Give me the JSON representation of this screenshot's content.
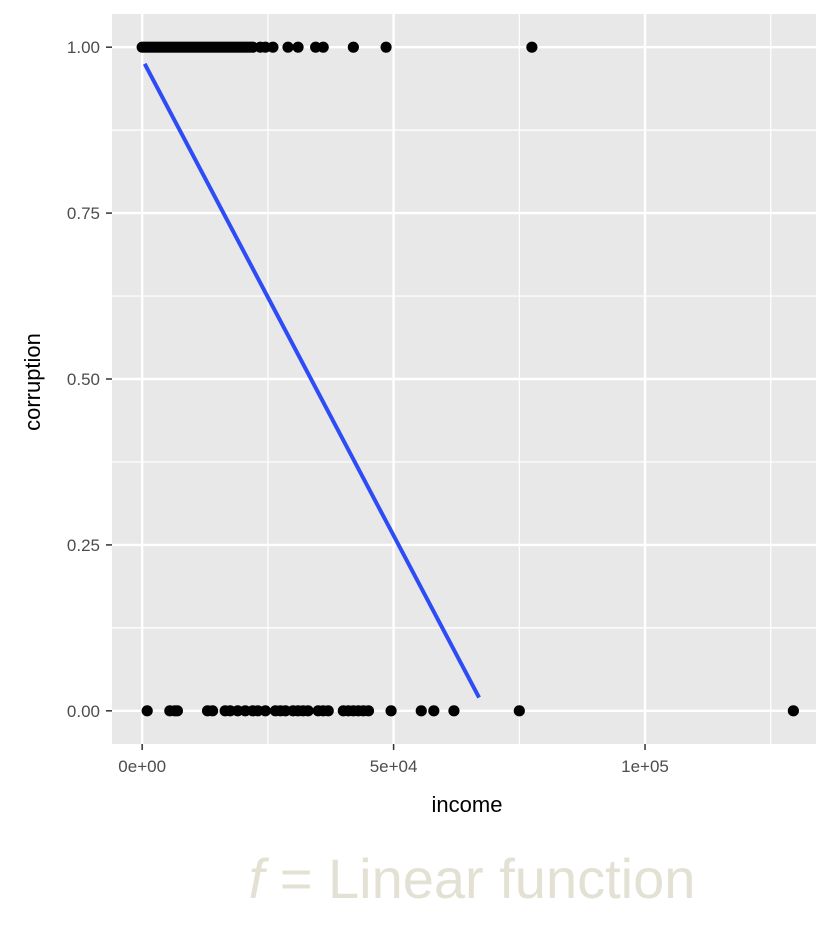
{
  "chart_data": {
    "type": "scatter",
    "xlabel": "income",
    "ylabel": "corruption",
    "xlim": [
      -6000,
      134000
    ],
    "ylim": [
      -0.05,
      1.05
    ],
    "x_ticks": [
      0,
      50000,
      100000
    ],
    "x_tick_labels": [
      "0e+00",
      "5e+04",
      "1e+05"
    ],
    "y_ticks": [
      0,
      0.25,
      0.5,
      0.75,
      1
    ],
    "y_tick_labels": [
      "0.00",
      "0.25",
      "0.50",
      "0.75",
      "1.00"
    ],
    "grid": true,
    "points": {
      "x": [
        0,
        500,
        1000,
        1500,
        2000,
        2500,
        3000,
        3500,
        4000,
        4500,
        5000,
        5500,
        6000,
        6500,
        7000,
        7500,
        8000,
        8500,
        9000,
        9500,
        10000,
        10500,
        11000,
        11500,
        12000,
        12500,
        13000,
        13500,
        14000,
        14500,
        15000,
        15500,
        16000,
        16500,
        17000,
        17500,
        18000,
        18500,
        19000,
        19500,
        20000,
        20500,
        21000,
        21500,
        22000,
        23500,
        24500,
        26000,
        29000,
        31000,
        34500,
        36000,
        42000,
        48500,
        77500,
        1000,
        5500,
        6500,
        7000,
        13000,
        14000,
        16500,
        17500,
        19000,
        20500,
        22000,
        23000,
        24500,
        26500,
        27500,
        28500,
        30000,
        31000,
        32000,
        33000,
        35000,
        36000,
        37000,
        40000,
        41000,
        42000,
        43000,
        44000,
        45000,
        49500,
        55500,
        58000,
        62000,
        75000,
        129500
      ],
      "y": [
        1,
        1,
        1,
        1,
        1,
        1,
        1,
        1,
        1,
        1,
        1,
        1,
        1,
        1,
        1,
        1,
        1,
        1,
        1,
        1,
        1,
        1,
        1,
        1,
        1,
        1,
        1,
        1,
        1,
        1,
        1,
        1,
        1,
        1,
        1,
        1,
        1,
        1,
        1,
        1,
        1,
        1,
        1,
        1,
        1,
        1,
        1,
        1,
        1,
        1,
        1,
        1,
        1,
        1,
        1,
        0,
        0,
        0,
        0,
        0,
        0,
        0,
        0,
        0,
        0,
        0,
        0,
        0,
        0,
        0,
        0,
        0,
        0,
        0,
        0,
        0,
        0,
        0,
        0,
        0,
        0,
        0,
        0,
        0,
        0,
        0,
        0,
        0,
        0,
        0
      ]
    },
    "fit_line": {
      "x": [
        500,
        67000
      ],
      "y": [
        0.975,
        0.02
      ]
    },
    "colors": {
      "panel": "#e8e8e8",
      "grid": "#ffffff",
      "point": "#000000",
      "line": "#2e4cf5"
    }
  },
  "caption": {
    "variable": "f",
    "rest": " = Linear function"
  }
}
